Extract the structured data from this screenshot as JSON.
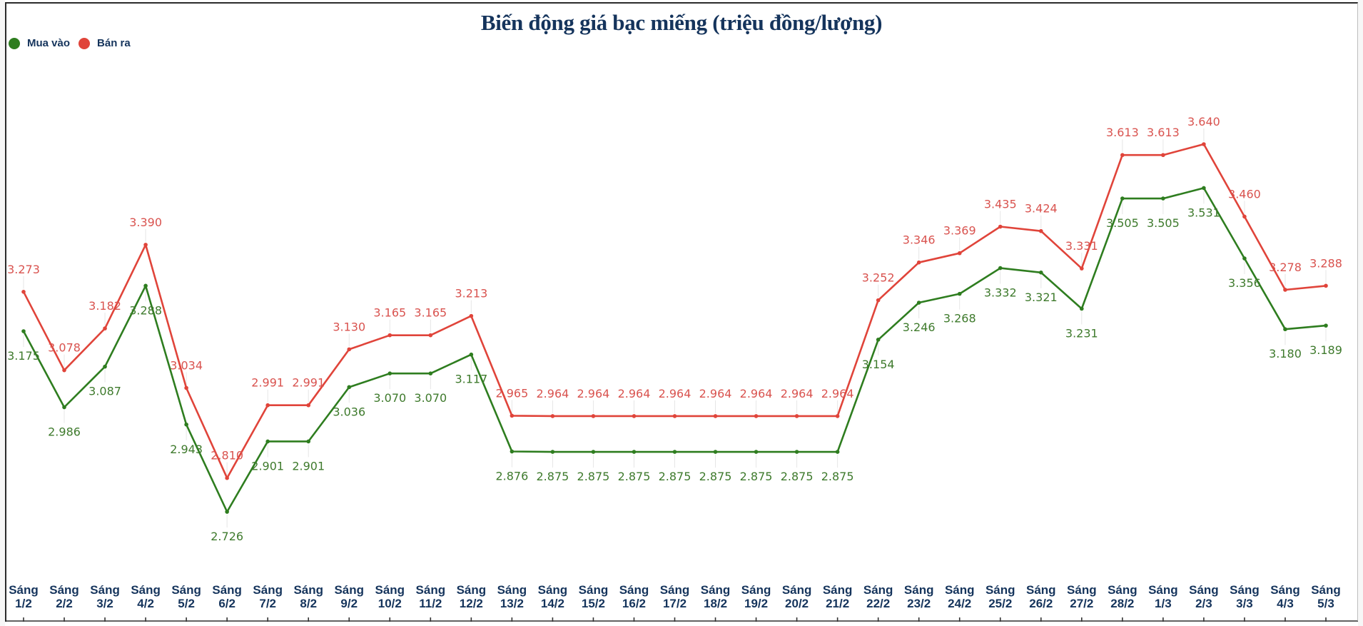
{
  "title": "Biến động giá bạc miếng (triệu đồng/lượng)",
  "legend": [
    {
      "label": "Mua vào",
      "color": "#2e7d1f"
    },
    {
      "label": "Bán ra",
      "color": "#e0443a"
    }
  ],
  "colors": {
    "buy_line": "#2e7d1f",
    "sell_line": "#e0443a",
    "buy_label": "#3e7a2c",
    "sell_label": "#d9534f",
    "axis_text": "#15345c"
  },
  "chart_data": {
    "type": "line",
    "title": "Biến động giá bạc miếng (triệu đồng/lượng)",
    "xlabel": "",
    "ylabel": "triệu đồng/lượng",
    "categories": [
      "Sáng 1/2",
      "Sáng 2/2",
      "Sáng 3/2",
      "Sáng 4/2",
      "Sáng 5/2",
      "Sáng 6/2",
      "Sáng 7/2",
      "Sáng 8/2",
      "Sáng 9/2",
      "Sáng 10/2",
      "Sáng 11/2",
      "Sáng 12/2",
      "Sáng 13/2",
      "Sáng 14/2",
      "Sáng 15/2",
      "Sáng 16/2",
      "Sáng 17/2",
      "Sáng 18/2",
      "Sáng 19/2",
      "Sáng 20/2",
      "Sáng 21/2",
      "Sáng 22/2",
      "Sáng 23/2",
      "Sáng 24/2",
      "Sáng 25/2",
      "Sáng 26/2",
      "Sáng 27/2",
      "Sáng 28/2",
      "Sáng 1/3",
      "Sáng 2/3",
      "Sáng 3/3",
      "Sáng 4/3",
      "Sáng 5/3"
    ],
    "series": [
      {
        "name": "Mua vào",
        "color": "#2e7d1f",
        "values": [
          3.175,
          2.986,
          3.087,
          3.288,
          2.943,
          2.726,
          2.901,
          2.901,
          3.036,
          3.07,
          3.07,
          3.117,
          2.876,
          2.875,
          2.875,
          2.875,
          2.875,
          2.875,
          2.875,
          2.875,
          2.875,
          3.154,
          3.246,
          3.268,
          3.332,
          3.321,
          3.231,
          3.505,
          3.505,
          3.531,
          3.356,
          3.18,
          3.189
        ]
      },
      {
        "name": "Bán ra",
        "color": "#e0443a",
        "values": [
          3.273,
          3.078,
          3.182,
          3.39,
          3.034,
          2.81,
          2.991,
          2.991,
          3.13,
          3.165,
          3.165,
          3.213,
          2.965,
          2.964,
          2.964,
          2.964,
          2.964,
          2.964,
          2.964,
          2.964,
          2.964,
          3.252,
          3.346,
          3.369,
          3.435,
          3.424,
          3.331,
          3.613,
          3.613,
          3.64,
          3.46,
          3.278,
          3.288
        ]
      }
    ],
    "value_labels": true,
    "grid": false,
    "legend_position": "top-left",
    "ylim": [
      2.6,
      3.8
    ]
  }
}
